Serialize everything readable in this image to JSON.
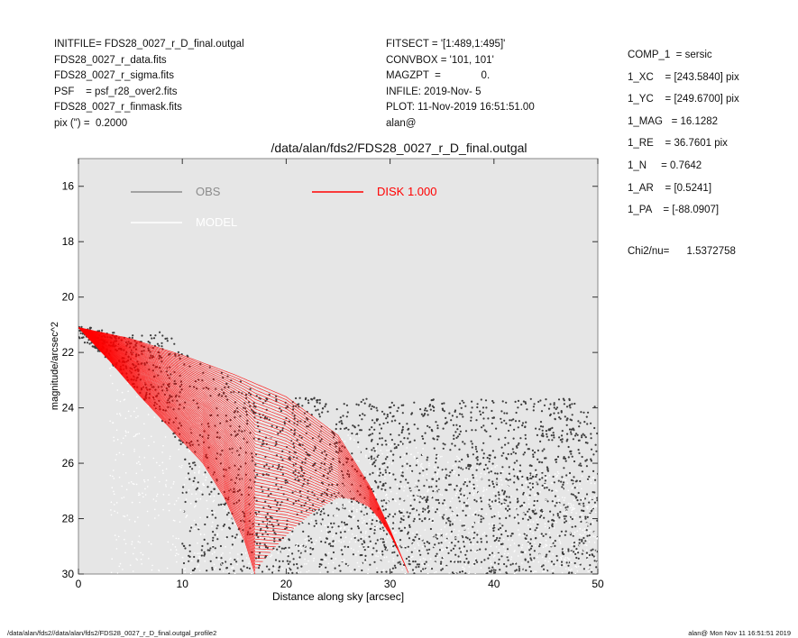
{
  "header_left": [
    "INITFILE= FDS28_0027_r_D_final.outgal",
    "FDS28_0027_r_data.fits",
    "FDS28_0027_r_sigma.fits",
    "PSF    = psf_r28_over2.fits",
    "FDS28_0027_r_finmask.fits",
    "pix (\") =  0.2000"
  ],
  "header_mid": [
    "FITSECT = '[1:489,1:495]'",
    "CONVBOX = '101, 101'",
    "MAGZPT  =              0.",
    "INFILE: 2019-Nov- 5",
    "PLOT: 11-Nov-2019 16:51:51.00",
    "alan@"
  ],
  "header_right": [
    "COMP_1  = sersic",
    "1_XC    = [243.5840] pix",
    "1_YC    = [249.6700] pix",
    "1_MAG   = 16.1282",
    "1_RE    = 36.7601 pix",
    "1_N     = 0.7642",
    "1_AR    = [0.5241]",
    "1_PA    = [-88.0907]"
  ],
  "chi_line": "Chi2/nu=      1.5372758",
  "footer_left": "/data/alan/fds2//data/alan/fds2/FDS28_0027_r_D_final.outgal_profile2",
  "footer_right": "alan@  Mon Nov 11 16:51:51 2019",
  "chart_data": {
    "type": "scatter",
    "title": "/data/alan/fds2/FDS28_0027_r_D_final.outgal",
    "xlabel": "Distance along sky [arcsec]",
    "ylabel": "magnitude/arcsec^2",
    "xlim": [
      0,
      50
    ],
    "ylim": [
      30,
      15
    ],
    "y_inverted": true,
    "xticks": [
      0,
      10,
      20,
      30,
      40,
      50
    ],
    "yticks": [
      16,
      18,
      20,
      22,
      24,
      26,
      28,
      30
    ],
    "grid": false,
    "background": "#e6e6e6",
    "legend_placement": "top",
    "legend": [
      {
        "label": "OBS",
        "color": "#8c8c8c"
      },
      {
        "label": "MODEL",
        "color": "#ffffff"
      },
      {
        "label": "DISK  1.000",
        "color": "#ff0000"
      }
    ],
    "series": [
      {
        "name": "OBS",
        "color": "#3c3c3c",
        "description_points": [
          [
            0,
            20.9
          ],
          [
            2,
            21.4
          ],
          [
            5,
            22.5
          ],
          [
            7,
            23.4
          ],
          [
            10,
            24.8
          ],
          [
            15,
            26.3
          ],
          [
            20,
            28.2
          ],
          [
            25,
            30.0
          ]
        ],
        "upper_envelope": [
          [
            0,
            21.0
          ],
          [
            5,
            21.4
          ],
          [
            8,
            21.2
          ],
          [
            10,
            21.8
          ],
          [
            13,
            22.6
          ],
          [
            17,
            23.2
          ],
          [
            20,
            23.6
          ],
          [
            30,
            23.7
          ],
          [
            40,
            23.7
          ],
          [
            50,
            23.6
          ]
        ]
      },
      {
        "name": "MODEL",
        "color": "#ffffff",
        "points": [
          [
            0,
            21.1
          ],
          [
            5,
            21.8
          ],
          [
            10,
            22.6
          ],
          [
            15,
            23.3
          ],
          [
            20,
            24.0
          ],
          [
            30,
            25.2
          ],
          [
            40,
            26.0
          ],
          [
            50,
            26.5
          ]
        ]
      },
      {
        "name": "DISK  1.000",
        "color": "#ff0000",
        "inner_edge": [
          [
            0,
            21.1
          ],
          [
            5,
            21.5
          ],
          [
            10,
            22.1
          ],
          [
            15,
            22.8
          ],
          [
            20,
            23.6
          ],
          [
            25,
            25.0
          ],
          [
            28,
            26.8
          ],
          [
            30,
            28.4
          ],
          [
            31.8,
            30.0
          ]
        ],
        "outer_edge": [
          [
            0,
            21.1
          ],
          [
            3,
            22.3
          ],
          [
            6,
            23.6
          ],
          [
            9,
            24.8
          ],
          [
            12,
            26.0
          ],
          [
            14,
            27.2
          ],
          [
            16,
            28.8
          ],
          [
            17,
            30.0
          ]
        ]
      }
    ]
  }
}
